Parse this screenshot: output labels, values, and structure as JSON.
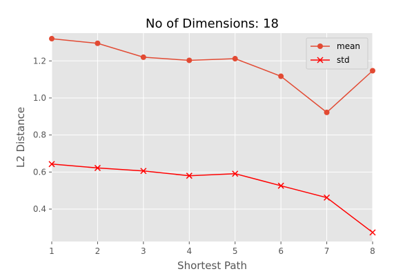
{
  "chart_data": {
    "type": "line",
    "title": "No of Dimensions: 18",
    "xlabel": "Shortest Path",
    "ylabel": "L2 Distance",
    "xlim": [
      1,
      8
    ],
    "ylim": [
      0.225,
      1.35
    ],
    "x": [
      1,
      2,
      3,
      4,
      5,
      6,
      7,
      8
    ],
    "xticks": [
      1,
      2,
      3,
      4,
      5,
      6,
      7,
      8
    ],
    "yticks": [
      0.4,
      0.6,
      0.8,
      1.0,
      1.2
    ],
    "ytick_labels": [
      "0.4",
      "0.6",
      "0.8",
      "1.0",
      "1.2"
    ],
    "grid": true,
    "legend_position": "top-right",
    "series": [
      {
        "name": "mean",
        "marker": "circle",
        "color": "#E24A33",
        "values": [
          1.32,
          1.295,
          1.22,
          1.203,
          1.212,
          1.117,
          0.922,
          1.147
        ]
      },
      {
        "name": "std",
        "marker": "x",
        "color": "#FF0000",
        "values": [
          0.643,
          0.622,
          0.606,
          0.58,
          0.591,
          0.526,
          0.462,
          0.274
        ]
      }
    ],
    "colors": {
      "plot_background": "#E5E5E5",
      "grid": "#FFFFFF",
      "tick_text": "#555555"
    }
  }
}
